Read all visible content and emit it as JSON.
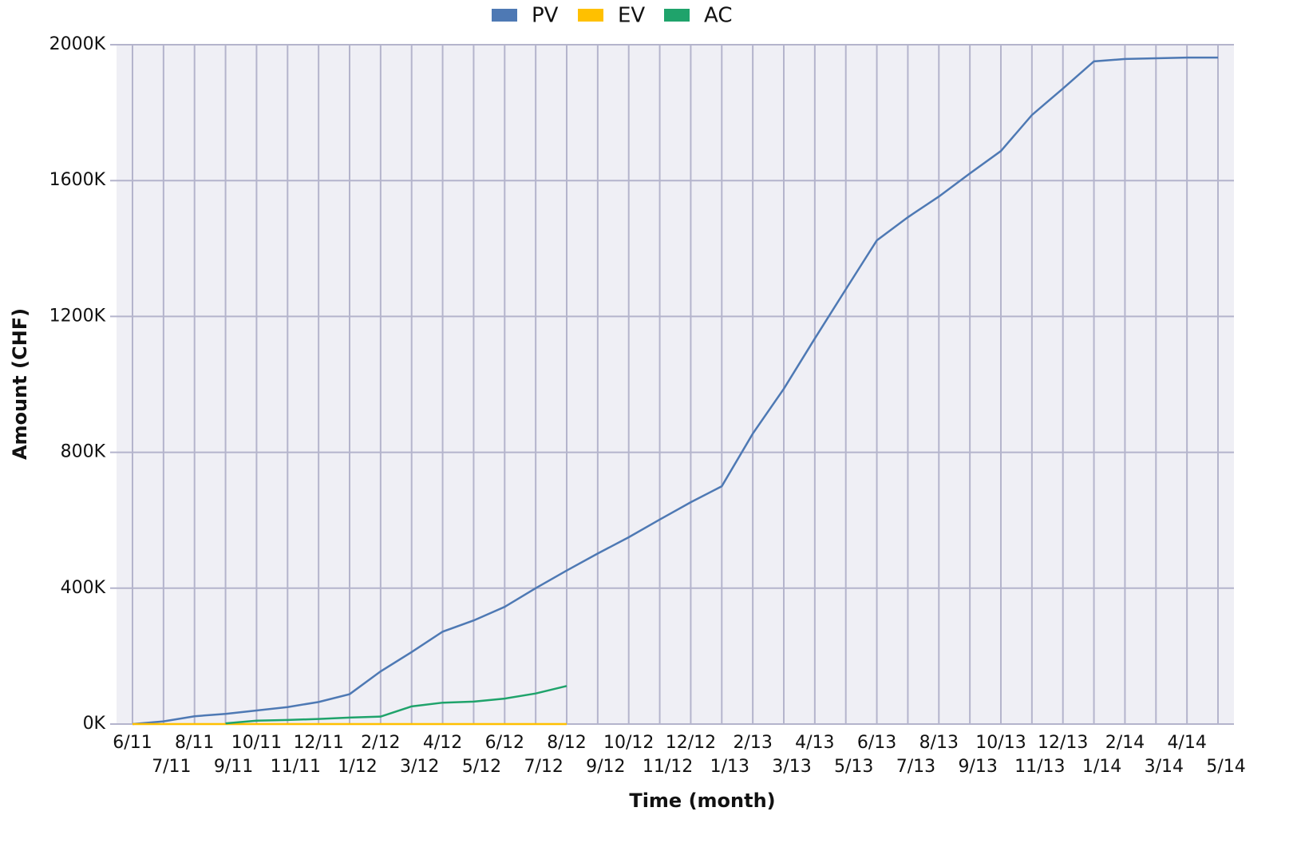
{
  "chart_data": {
    "type": "line",
    "x_label": "Time (month)",
    "y_label": "Amount (CHF)",
    "categories": [
      "6/11",
      "7/11",
      "8/11",
      "9/11",
      "10/11",
      "11/11",
      "12/11",
      "1/12",
      "2/12",
      "3/12",
      "4/12",
      "5/12",
      "6/12",
      "7/12",
      "8/12",
      "9/12",
      "10/12",
      "11/12",
      "12/12",
      "1/13",
      "2/13",
      "3/13",
      "4/13",
      "5/13",
      "6/13",
      "7/13",
      "8/13",
      "9/13",
      "10/13",
      "11/13",
      "12/13",
      "1/14",
      "2/14",
      "3/14",
      "4/14",
      "5/14"
    ],
    "series": [
      {
        "name": "PV",
        "color": "#4e79b4",
        "values": [
          0,
          8000,
          23000,
          30000,
          40000,
          50000,
          65000,
          88000,
          155000,
          212000,
          272000,
          305000,
          345000,
          400000,
          452000,
          502000,
          550000,
          602000,
          653000,
          700000,
          855000,
          987000,
          1135000,
          1280000,
          1424000,
          1492000,
          1553000,
          1621000,
          1687000,
          1793000,
          1871000,
          1951000,
          1958000,
          1960000,
          1962000,
          1962000
        ]
      },
      {
        "name": "EV",
        "color": "#ffc000",
        "values": [
          0,
          0,
          0,
          0,
          0,
          0,
          0,
          0,
          0,
          0,
          0,
          0,
          0,
          0,
          0,
          null,
          null,
          null,
          null,
          null,
          null,
          null,
          null,
          null,
          null,
          null,
          null,
          null,
          null,
          null,
          null,
          null,
          null,
          null,
          null,
          null
        ]
      },
      {
        "name": "AC",
        "color": "#1fa36b",
        "values": [
          null,
          null,
          null,
          2000,
          10000,
          12000,
          15000,
          19000,
          22000,
          52000,
          63000,
          66000,
          75000,
          90000,
          112000,
          null,
          null,
          null,
          null,
          null,
          null,
          null,
          null,
          null,
          null,
          null,
          null,
          null,
          null,
          null,
          null,
          null,
          null,
          null,
          null,
          null
        ]
      }
    ],
    "ylim": [
      0,
      2000000
    ],
    "yticks": [
      {
        "value": 0,
        "label": "0K"
      },
      {
        "value": 400000,
        "label": "400K"
      },
      {
        "value": 800000,
        "label": "800K"
      },
      {
        "value": 1200000,
        "label": "1200K"
      },
      {
        "value": 1600000,
        "label": "1600K"
      },
      {
        "value": 2000000,
        "label": "2000K"
      }
    ],
    "grid": true,
    "legend": "top"
  }
}
